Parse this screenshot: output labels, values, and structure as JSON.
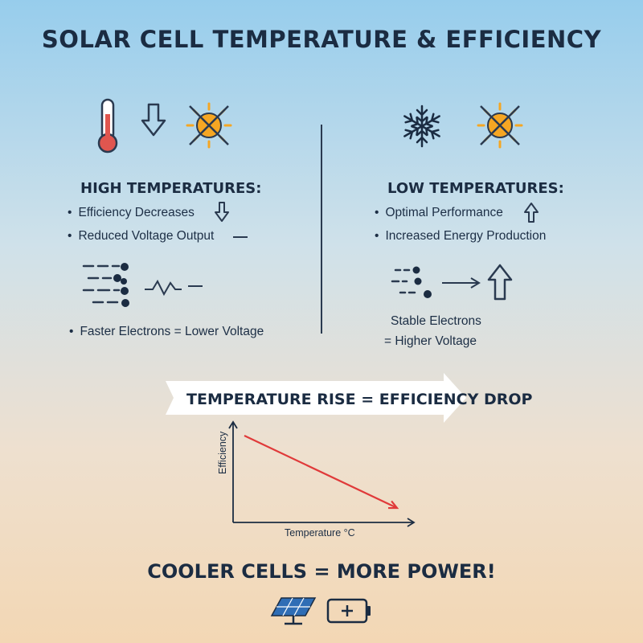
{
  "title": "SOLAR CELL TEMPERATURE & EFFICIENCY",
  "high": {
    "heading": "HIGH TEMPERATURES:",
    "bullets": [
      "Efficiency Decreases",
      "Reduced Voltage Output"
    ],
    "electron_note": "Faster Electrons = Lower Voltage"
  },
  "low": {
    "heading": "LOW TEMPERATURES:",
    "bullets": [
      "Optimal Performance",
      "Increased Energy Production"
    ],
    "electron_note_line1": "Stable Electrons",
    "electron_note_line2": "= Higher Voltage"
  },
  "banner": "TEMPERATURE RISE = EFFICIENCY DROP",
  "chart_data": {
    "type": "line",
    "xlabel": "Temperature °C",
    "ylabel": "Efficiency",
    "trend": "decreasing",
    "series": [
      {
        "x": [
          0,
          1
        ],
        "y": [
          1,
          0
        ]
      }
    ],
    "line_color": "#e03a3a"
  },
  "footer": "COOLER CELLS = MORE POWER!",
  "icons": [
    "thermometer-icon",
    "down-arrow-icon",
    "sun-crossed-icon",
    "snowflake-icon",
    "up-arrow-icon",
    "right-arrow-icon",
    "solar-panel-icon",
    "battery-icon"
  ],
  "colors": {
    "sun": "#f5a623",
    "thermometer": "#e0564f",
    "trend_line": "#e03a3a",
    "panel": "#2f6db5",
    "text": "#1b2c42"
  }
}
